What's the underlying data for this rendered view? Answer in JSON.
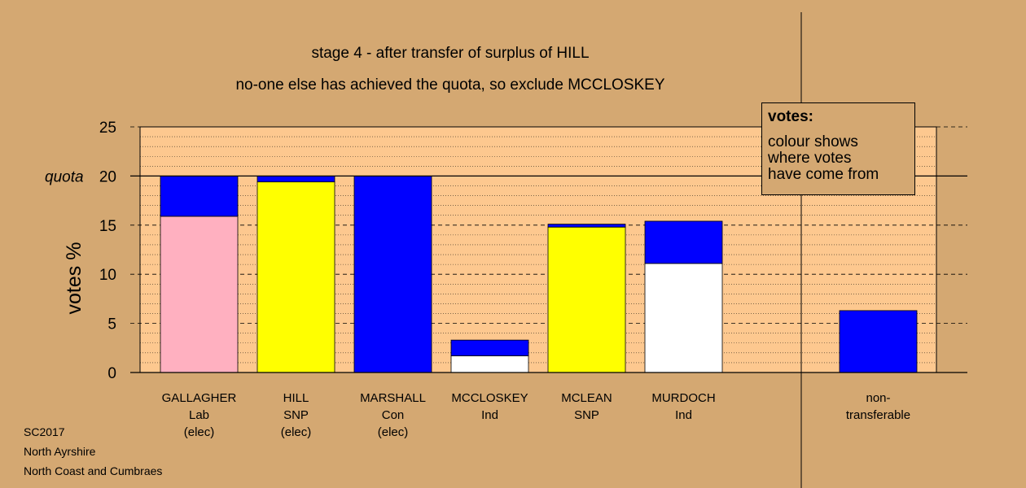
{
  "chart_data": {
    "type": "bar",
    "stacked": true,
    "title": "stage 4 - after transfer of surplus of HILL",
    "subtitle": "no-one else has achieved the quota, so exclude MCCLOSKEY",
    "ylabel": "votes %",
    "ylim": [
      0,
      25
    ],
    "yticks": [
      "0",
      "5",
      "10",
      "15",
      "20",
      "25"
    ],
    "quota_label": "quota",
    "quota_value": 20,
    "grid": true,
    "categories": [
      {
        "lines": [
          "GALLAGHER",
          "Lab",
          "(elec)"
        ]
      },
      {
        "lines": [
          "HILL",
          "SNP",
          "(elec)"
        ]
      },
      {
        "lines": [
          "MARSHALL",
          "Con",
          "(elec)"
        ]
      },
      {
        "lines": [
          "MCCLOSKEY",
          "Ind"
        ]
      },
      {
        "lines": [
          "MCLEAN",
          "SNP"
        ]
      },
      {
        "lines": [
          "MURDOCH",
          "Ind"
        ]
      },
      {
        "lines": [
          "non-",
          "transferable"
        ]
      }
    ],
    "bars": [
      {
        "segments": [
          {
            "value": 15.9,
            "color": "#ffb0c0"
          },
          {
            "value": 4.1,
            "color": "#0000ff"
          }
        ]
      },
      {
        "segments": [
          {
            "value": 19.4,
            "color": "#ffff00"
          },
          {
            "value": 0.6,
            "color": "#0000ff"
          }
        ]
      },
      {
        "segments": [
          {
            "value": 20.0,
            "color": "#0000ff"
          }
        ]
      },
      {
        "segments": [
          {
            "value": 1.7,
            "color": "#ffffff"
          },
          {
            "value": 1.6,
            "color": "#0000ff"
          }
        ]
      },
      {
        "segments": [
          {
            "value": 14.8,
            "color": "#ffff00"
          },
          {
            "value": 0.3,
            "color": "#0000ff"
          }
        ]
      },
      {
        "segments": [
          {
            "value": 11.1,
            "color": "#ffffff"
          },
          {
            "value": 4.3,
            "color": "#0000ff"
          }
        ]
      },
      {
        "segments": [
          {
            "value": 6.3,
            "color": "#0000ff"
          }
        ]
      }
    ],
    "colors": {
      "background": "#d4a872",
      "plot": "#fdc88f",
      "conservative": "#0000ff",
      "labour": "#ffb0c0",
      "snp": "#ffff00",
      "independent": "#ffffff"
    }
  },
  "legend": {
    "title": "votes:",
    "lines": [
      "colour shows",
      "where votes",
      "have come from"
    ]
  },
  "footer": {
    "line1": "SC2017",
    "line2": "North Ayrshire",
    "line3": "North Coast and Cumbraes"
  }
}
